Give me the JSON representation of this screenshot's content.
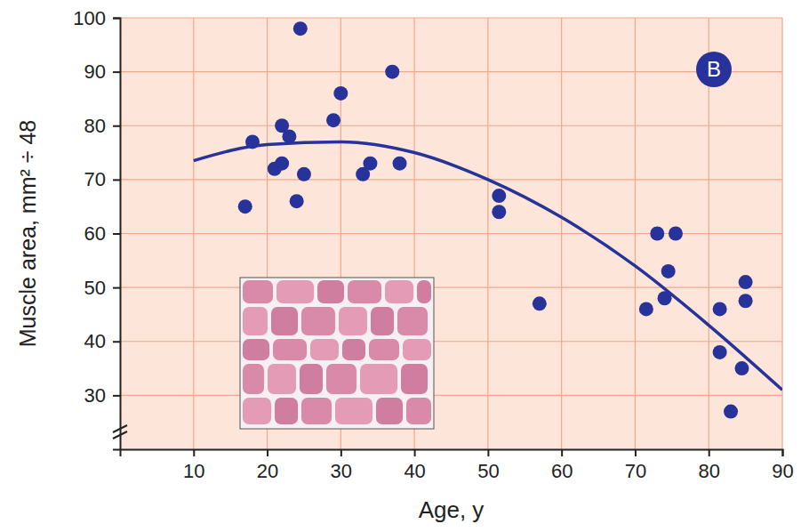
{
  "chart_data": {
    "type": "scatter",
    "panel_label": "B",
    "x_label": "Age, y",
    "y_label": "Muscle area, mm² ÷ 48",
    "xlim": [
      0,
      90
    ],
    "xticks": [
      10,
      20,
      30,
      40,
      50,
      60,
      70,
      80,
      90
    ],
    "ylim": [
      20,
      100
    ],
    "yticks": [
      30,
      40,
      50,
      60,
      70,
      80,
      90,
      100
    ],
    "grid": true,
    "series": [
      {
        "type": "scatter",
        "marker": "circle",
        "color": "#27339a",
        "x": [
          17,
          18,
          21,
          22,
          22,
          23,
          24,
          24.5,
          25,
          29,
          30,
          33,
          34,
          37,
          38,
          51.5,
          51.5,
          57,
          71.5,
          73,
          74,
          74.5,
          75.5,
          81.5,
          81.5,
          83,
          84.5,
          85,
          85
        ],
        "values": [
          65,
          77,
          72,
          73,
          80,
          78,
          66,
          98,
          71,
          81,
          86,
          71,
          73,
          90,
          73,
          67,
          64,
          47,
          46,
          60,
          48,
          53,
          60,
          46,
          38,
          27,
          35,
          51,
          47.5
        ]
      },
      {
        "type": "line",
        "line_style": "solid",
        "color": "#27339a",
        "x": [
          10,
          20,
          30,
          40,
          50,
          60,
          70,
          80,
          90
        ],
        "values": [
          73.5,
          76.5,
          77,
          75,
          70,
          63,
          54,
          43,
          31
        ]
      }
    ]
  }
}
